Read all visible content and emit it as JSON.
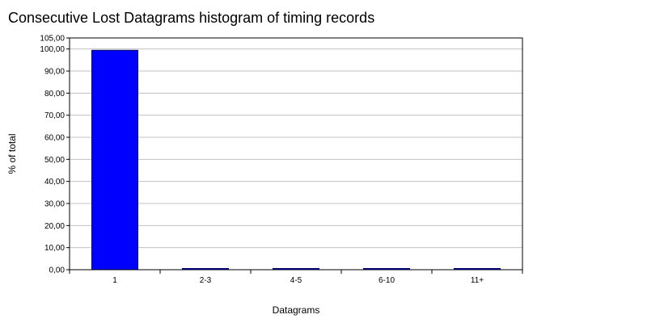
{
  "chart_data": {
    "type": "bar",
    "title": "Consecutive Lost Datagrams histogram of timing records",
    "xlabel": "Datagrams",
    "ylabel": "% of total",
    "categories": [
      "1",
      "2-3",
      "4-5",
      "6-10",
      "11+"
    ],
    "values": [
      99.4,
      0.5,
      0.05,
      0.03,
      0.02
    ],
    "ylim": [
      0,
      105
    ],
    "yticks": [
      "0,00",
      "10,00",
      "20,00",
      "30,00",
      "40,00",
      "50,00",
      "60,00",
      "70,00",
      "80,00",
      "90,00",
      "100,00",
      "105,00"
    ],
    "ytick_values": [
      0,
      10,
      20,
      30,
      40,
      50,
      60,
      70,
      80,
      90,
      100,
      105
    ],
    "grid": true,
    "legend": "none",
    "colors": {
      "bar_fill": "#0000ff",
      "bar_stroke": "#000066",
      "grid": "#c0c0c0",
      "axis": "#000000"
    }
  }
}
